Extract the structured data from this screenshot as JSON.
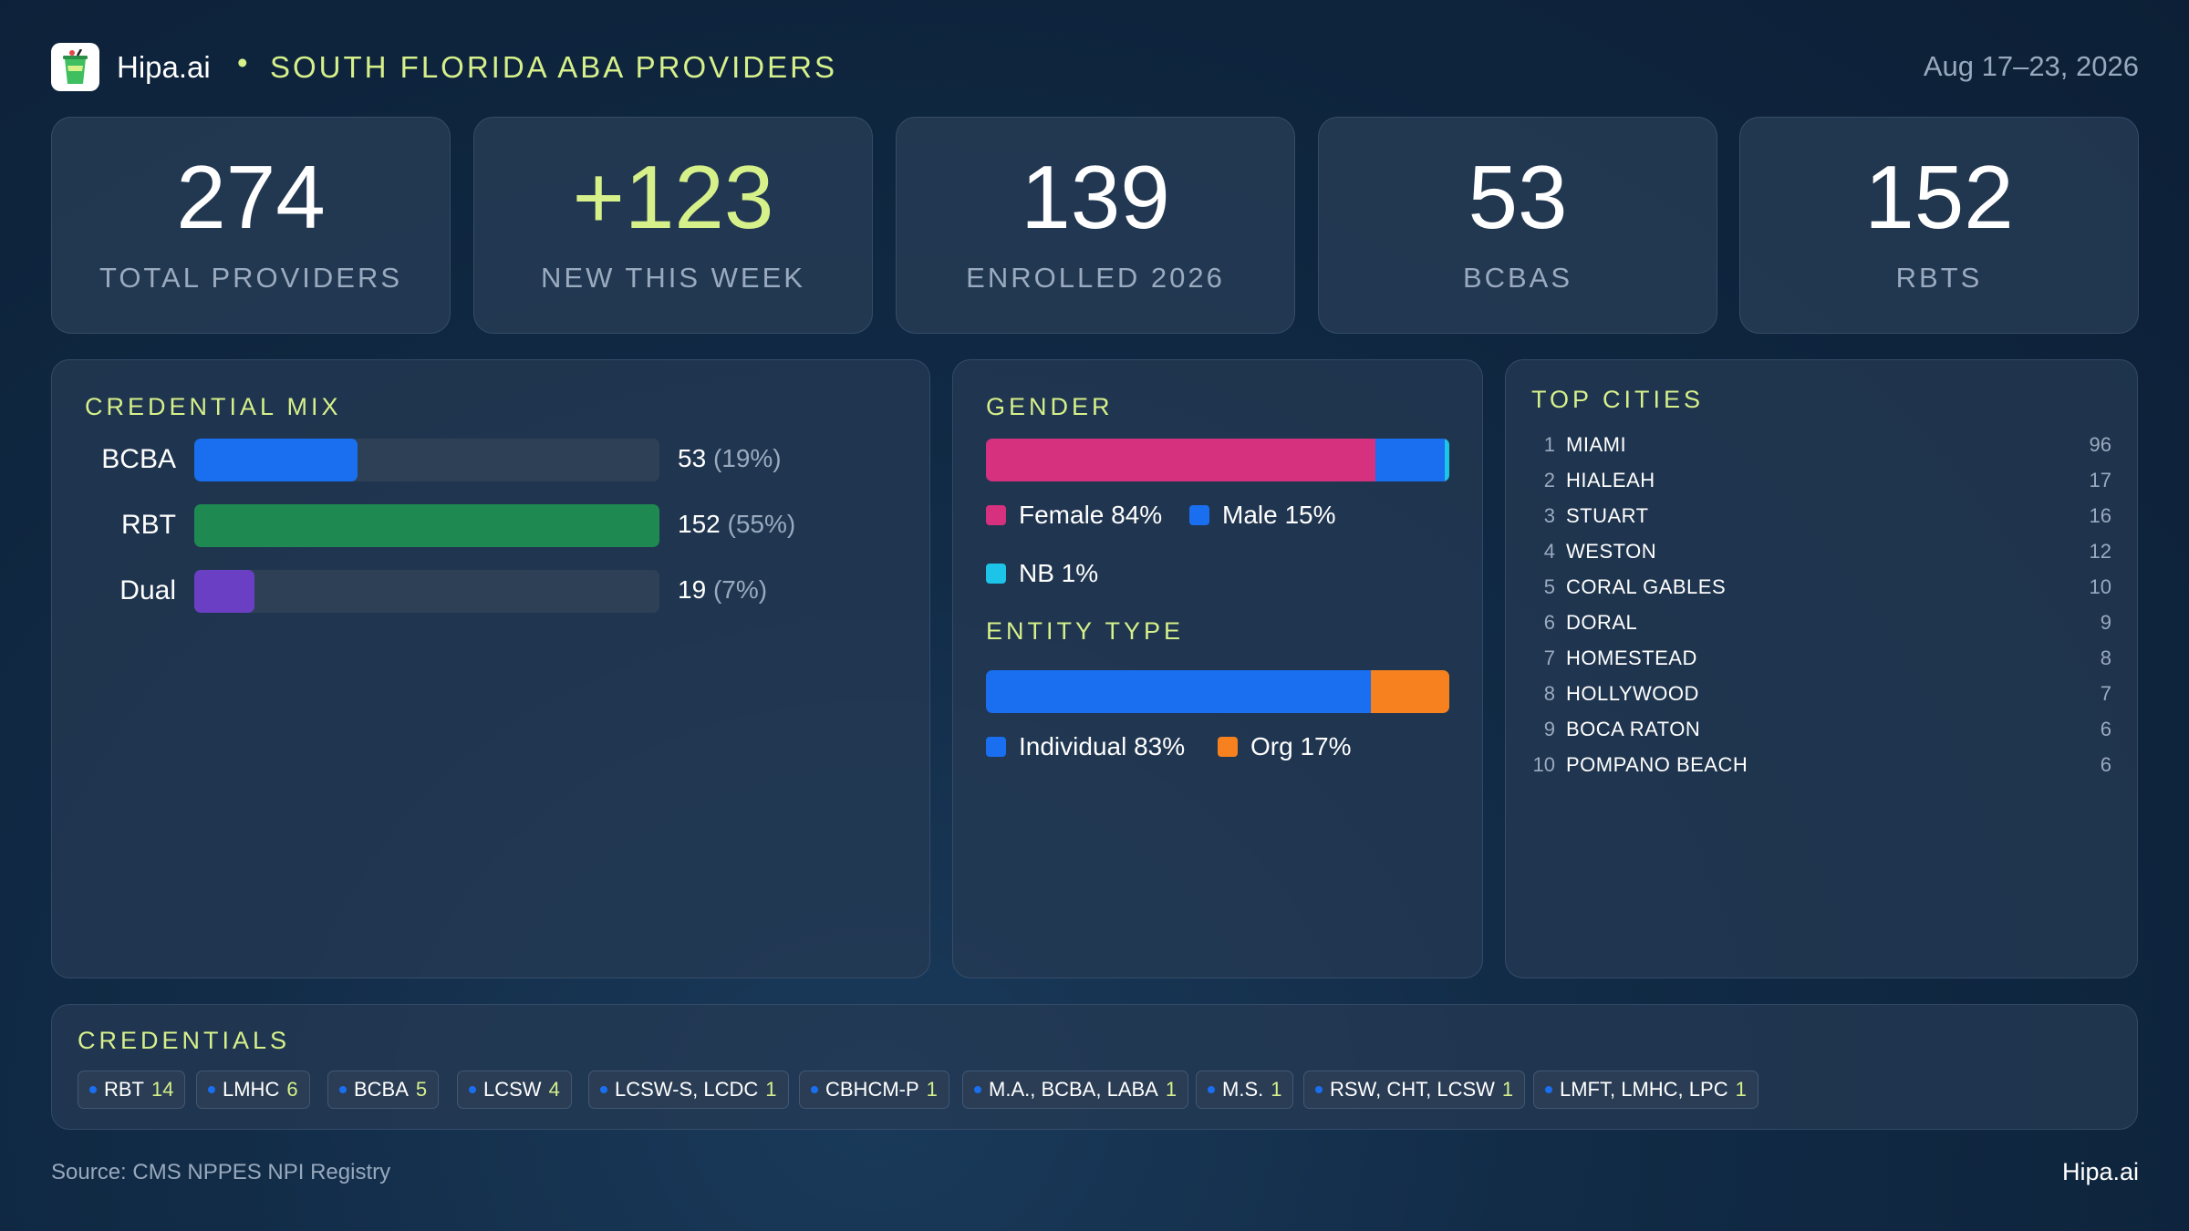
{
  "header": {
    "brand": "Hipa.ai",
    "separator": "•",
    "title": "SOUTH FLORIDA ABA PROVIDERS",
    "date_range": "Aug 17–23, 2026"
  },
  "kpis": [
    {
      "value": "274",
      "label": "TOTAL PROVIDERS",
      "color": "#ffffff"
    },
    {
      "value": "+123",
      "label": "NEW THIS WEEK",
      "color": "#d6f08a"
    },
    {
      "value": "139",
      "label": "ENROLLED 2026",
      "color": "#ffffff"
    },
    {
      "value": "53",
      "label": "BCBAS",
      "color": "#ffffff"
    },
    {
      "value": "152",
      "label": "RBTS",
      "color": "#ffffff"
    }
  ],
  "credential_mix": {
    "title": "CREDENTIAL MIX",
    "rows": [
      {
        "label": "BCBA",
        "count": "53",
        "pct_text": "(19%)",
        "fraction": 0.35,
        "color": "#1a6ff0"
      },
      {
        "label": "RBT",
        "count": "152",
        "pct_text": "(55%)",
        "fraction": 1.0,
        "color": "#1e8a52"
      },
      {
        "label": "Dual",
        "count": "19",
        "pct_text": "(7%)",
        "fraction": 0.13,
        "color": "#6b3fc4"
      }
    ]
  },
  "gender": {
    "title": "GENDER",
    "segments": [
      {
        "label": "Female 84%",
        "share": 84,
        "color": "#d6317f"
      },
      {
        "label": "Male 15%",
        "share": 15,
        "color": "#1a6ff0"
      },
      {
        "label": "NB 1%",
        "share": 1,
        "color": "#1cc4e8"
      }
    ]
  },
  "entity_type": {
    "title": "ENTITY TYPE",
    "segments": [
      {
        "label": "Individual 83%",
        "share": 83,
        "color": "#1a6ff0"
      },
      {
        "label": "Org 17%",
        "share": 17,
        "color": "#f7811e"
      }
    ]
  },
  "top_cities": {
    "title": "TOP CITIES",
    "rows": [
      {
        "rank": "1",
        "name": "MIAMI",
        "count": "96"
      },
      {
        "rank": "2",
        "name": "HIALEAH",
        "count": "17"
      },
      {
        "rank": "3",
        "name": "STUART",
        "count": "16"
      },
      {
        "rank": "4",
        "name": "WESTON",
        "count": "12"
      },
      {
        "rank": "5",
        "name": "CORAL GABLES",
        "count": "10"
      },
      {
        "rank": "6",
        "name": "DORAL",
        "count": "9"
      },
      {
        "rank": "7",
        "name": "HOMESTEAD",
        "count": "8"
      },
      {
        "rank": "8",
        "name": "HOLLYWOOD",
        "count": "7"
      },
      {
        "rank": "9",
        "name": "BOCA RATON",
        "count": "6"
      },
      {
        "rank": "10",
        "name": "POMPANO BEACH",
        "count": "6"
      }
    ]
  },
  "credentials": {
    "title": "CREDENTIALS",
    "chips": [
      {
        "label": "RBT",
        "count": "14"
      },
      {
        "label": "LMHC",
        "count": "6"
      },
      {
        "label": "BCBA",
        "count": "5"
      },
      {
        "label": "LCSW",
        "count": "4"
      },
      {
        "label": "LCSW-S, LCDC",
        "count": "1"
      },
      {
        "label": "CBHCM-P",
        "count": "1"
      },
      {
        "label": "M.A., BCBA, LABA",
        "count": "1"
      },
      {
        "label": "M.S.",
        "count": "1"
      },
      {
        "label": "RSW, CHT, LCSW",
        "count": "1"
      },
      {
        "label": "LMFT, LMHC, LPC",
        "count": "1"
      }
    ]
  },
  "footer": {
    "source": "Source: CMS NPPES NPI Registry",
    "brand": "Hipa.ai"
  }
}
